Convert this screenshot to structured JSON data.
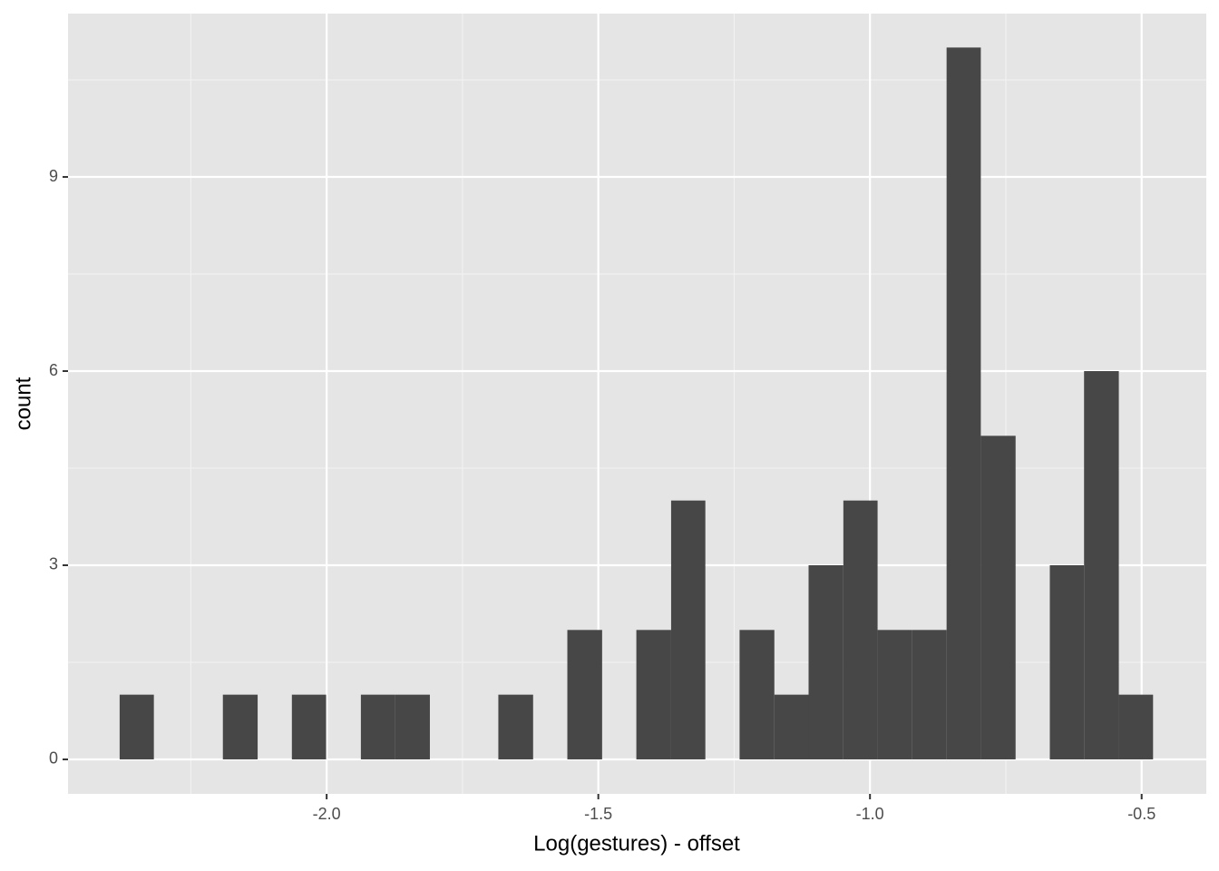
{
  "chart_data": {
    "type": "histogram",
    "x_label": "Log(gestures) - offset",
    "y_label": "count",
    "bins": [
      -2.381,
      -2.318,
      -2.254,
      -2.191,
      -2.127,
      -2.064,
      -2.001,
      -1.937,
      -1.874,
      -1.81,
      -1.747,
      -1.684,
      -1.62,
      -1.557,
      -1.493,
      -1.43,
      -1.366,
      -1.303,
      -1.24,
      -1.176,
      -1.113,
      -1.049,
      -0.986,
      -0.923,
      -0.859,
      -0.796,
      -0.732,
      -0.669,
      -0.606,
      -0.542,
      -0.479
    ],
    "values": [
      1,
      0,
      0,
      1,
      0,
      1,
      0,
      1,
      1,
      0,
      0,
      1,
      0,
      2,
      0,
      2,
      4,
      0,
      2,
      1,
      3,
      4,
      2,
      2,
      11,
      5,
      0,
      3,
      6,
      1
    ],
    "color": "#474747",
    "xlim": [
      -2.476,
      -0.381
    ],
    "ylim": [
      -0.533,
      11.524
    ],
    "xticks": [
      {
        "value": -2,
        "label": "-2.0"
      },
      {
        "value": -1.5,
        "label": "-1.5"
      },
      {
        "value": -1,
        "label": "-1.0"
      },
      {
        "value": -0.5,
        "label": "-0.5"
      }
    ],
    "yticks": [
      0,
      3,
      6,
      9
    ],
    "x_minor_ticks": [
      -2.25,
      -1.75,
      -1.25,
      -0.75
    ],
    "y_minor_ticks": [
      1.5,
      4.5,
      7.5,
      10.5
    ],
    "grid": true
  }
}
